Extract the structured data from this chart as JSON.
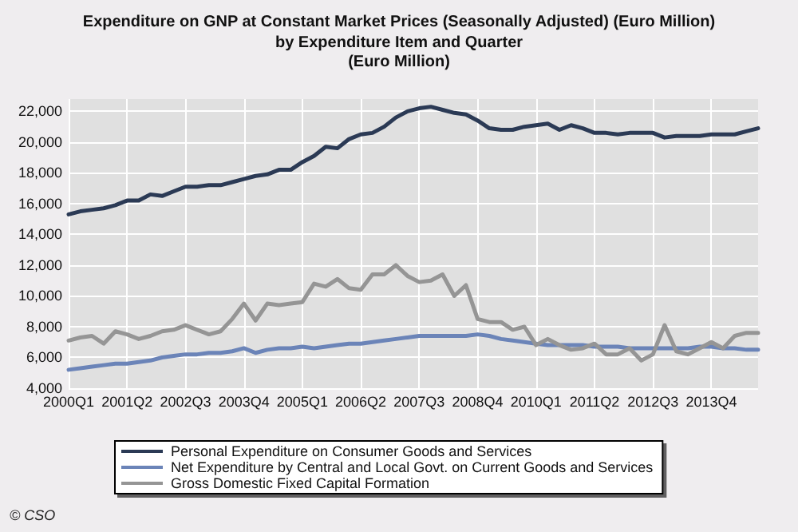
{
  "chart_data": {
    "type": "line",
    "title": "Expenditure on GNP at Constant Market Prices (Seasonally Adjusted) (Euro Million)",
    "subtitle": "by Expenditure Item and Quarter\n(Euro Million)",
    "categories": [
      "2000Q1",
      null,
      null,
      null,
      null,
      "2001Q2",
      null,
      null,
      null,
      null,
      "2002Q3",
      null,
      null,
      null,
      null,
      "2003Q4",
      null,
      null,
      null,
      null,
      "2005Q1",
      null,
      null,
      null,
      null,
      "2006Q2",
      null,
      null,
      null,
      null,
      "2007Q3",
      null,
      null,
      null,
      null,
      "2008Q4",
      null,
      null,
      null,
      null,
      "2010Q1",
      null,
      null,
      null,
      null,
      "2011Q2",
      null,
      null,
      null,
      null,
      "2012Q3",
      null,
      null,
      null,
      null,
      "2013Q4",
      null,
      null,
      null,
      null
    ],
    "series": [
      {
        "name": "Personal Expenditure on Consumer Goods and Services",
        "color": "#2b3a55",
        "values": [
          15300,
          15500,
          15600,
          15700,
          15900,
          16200,
          16200,
          16600,
          16500,
          16800,
          17100,
          17100,
          17200,
          17200,
          17400,
          17600,
          17800,
          17900,
          18200,
          18200,
          18700,
          19100,
          19700,
          19600,
          20200,
          20500,
          20600,
          21000,
          21600,
          22000,
          22200,
          22300,
          22100,
          21900,
          21800,
          21400,
          20900,
          20800,
          20800,
          21000,
          21100,
          21200,
          20800,
          21100,
          20900,
          20600,
          20600,
          20500,
          20600,
          20600,
          20600,
          20300,
          20400,
          20400,
          20400,
          20500,
          20500,
          20500,
          20700,
          20900
        ]
      },
      {
        "name": "Net Expenditure by Central and Local Govt. on Current Goods and Services",
        "color": "#6b84b8",
        "values": [
          5200,
          5300,
          5400,
          5500,
          5600,
          5600,
          5700,
          5800,
          6000,
          6100,
          6200,
          6200,
          6300,
          6300,
          6400,
          6600,
          6300,
          6500,
          6600,
          6600,
          6700,
          6600,
          6700,
          6800,
          6900,
          6900,
          7000,
          7100,
          7200,
          7300,
          7400,
          7400,
          7400,
          7400,
          7400,
          7500,
          7400,
          7200,
          7100,
          7000,
          6900,
          6800,
          6800,
          6800,
          6800,
          6700,
          6700,
          6700,
          6600,
          6600,
          6600,
          6600,
          6600,
          6600,
          6700,
          6700,
          6600,
          6600,
          6500,
          6500
        ]
      },
      {
        "name": "Gross Domestic Fixed Capital Formation",
        "color": "#959595",
        "values": [
          7100,
          7300,
          7400,
          6900,
          7700,
          7500,
          7200,
          7400,
          7700,
          7800,
          8100,
          7800,
          7500,
          7700,
          8500,
          9500,
          8400,
          9500,
          9400,
          9500,
          9600,
          10800,
          10600,
          11100,
          10500,
          10400,
          11400,
          11400,
          12000,
          11300,
          10900,
          11000,
          11400,
          10000,
          10700,
          8500,
          8300,
          8300,
          7800,
          8000,
          6800,
          7200,
          6800,
          6500,
          6600,
          6900,
          6200,
          6200,
          6600,
          5800,
          6200,
          8100,
          6400,
          6200,
          6600,
          7000,
          6600,
          7400,
          7600,
          7600
        ]
      }
    ],
    "ylim": [
      4000,
      22800
    ],
    "yticks": [
      {
        "value": 4000,
        "label": "4,000"
      },
      {
        "value": 6000,
        "label": "6,000"
      },
      {
        "value": 8000,
        "label": "8,000"
      },
      {
        "value": 10000,
        "label": "10,000"
      },
      {
        "value": 12000,
        "label": "12,000"
      },
      {
        "value": 14000,
        "label": "14,000"
      },
      {
        "value": 16000,
        "label": "16,000"
      },
      {
        "value": 18000,
        "label": "18,000"
      },
      {
        "value": 20000,
        "label": "20,000"
      },
      {
        "value": 22000,
        "label": "22,000"
      }
    ],
    "grid": true,
    "legend": "bottom",
    "marker": "none",
    "line_style": "solid",
    "annotations": [
      "© CSO"
    ]
  }
}
